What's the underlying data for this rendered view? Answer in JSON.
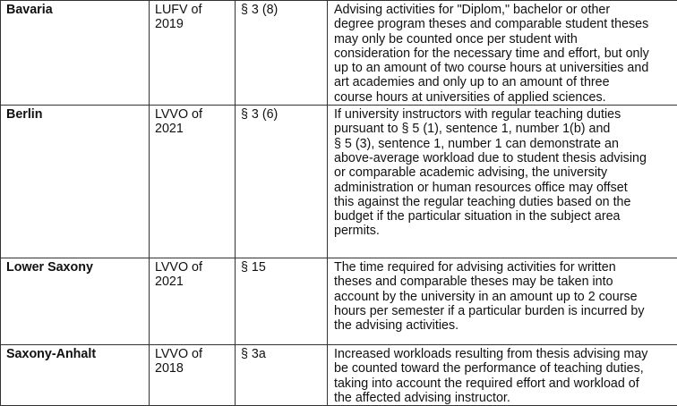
{
  "rows": [
    {
      "state": "Bavaria",
      "regulation": "LUFV of\n2019",
      "section": "§ 3 (8)",
      "text": "Advising activities for \"Diplom,\" bachelor or other\ndegree program theses and comparable student theses\nmay only be counted once per student with\nconsideration for the necessary time and effort, but only\nup to an amount of two course hours at universities and\nart academies and only up to an amount of three\ncourse hours at universities of applied sciences."
    },
    {
      "state": "Berlin",
      "regulation": "LVVO of\n2021",
      "section": "§ 3 (6)",
      "text": "If university instructors with regular teaching duties\npursuant to § 5 (1), sentence 1, number 1(b) and\n§ 5 (3), sentence 1, number 1 can demonstrate an\nabove-average workload due to student thesis advising\nor comparable academic advising, the university\nadministration or human resources office may offset\nthis against the regular teaching duties based on the\nbudget if the particular situation in the subject area\npermits."
    },
    {
      "state": "Lower Saxony",
      "regulation": "LVVO of\n2021",
      "section": "§ 15",
      "text": "The time required for advising activities for written\ntheses and comparable theses may be taken into\naccount by the university in an amount up to 2 course\nhours per semester if a particular burden is incurred by\nthe advising activities."
    },
    {
      "state": "Saxony-Anhalt",
      "regulation": "LVVO of\n2018",
      "section": "§ 3a",
      "text": "Increased workloads resulting from thesis advising may\nbe counted toward the performance of teaching duties,\ntaking into account the required effort and workload of\nthe affected advising instructor."
    }
  ]
}
